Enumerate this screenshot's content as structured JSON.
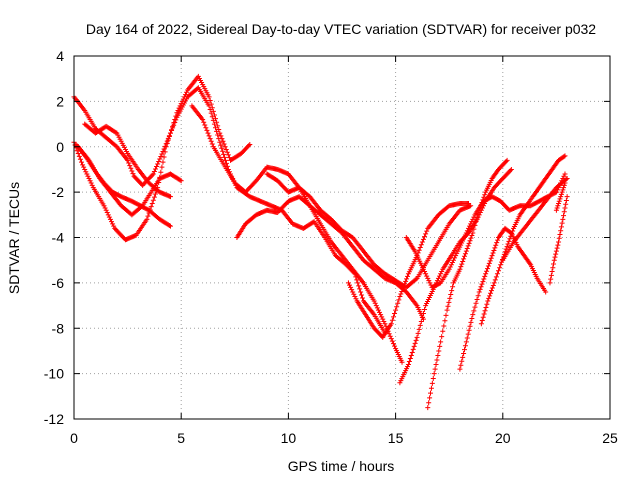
{
  "chart_data": {
    "type": "scatter",
    "title": "Day 164 of 2022, Sidereal Day-to-day VTEC variation (SDTVAR) for receiver p032",
    "xlabel": "GPS time / hours",
    "ylabel": "SDTVAR / TECUs",
    "xlim": [
      0,
      25
    ],
    "ylim": [
      -12,
      4
    ],
    "xticks": [
      "0",
      "5",
      "10",
      "15",
      "20",
      "25"
    ],
    "yticks": [
      "4",
      "2",
      "0",
      "-2",
      "-4",
      "-6",
      "-8",
      "-10",
      "-12"
    ],
    "grid": true,
    "legend": "none",
    "marker": "+",
    "color": "#ff0000",
    "series": [
      {
        "x": [
          0.0,
          0.5,
          1.0,
          1.5,
          2.0,
          2.5,
          2.8,
          3.2,
          3.7,
          4.2,
          4.8,
          5.3,
          5.8,
          6.3,
          6.8,
          7.2,
          7.6,
          8.2,
          8.7,
          9.2,
          9.7,
          10.2,
          10.7,
          11.2,
          11.7,
          12.2,
          12.7,
          13.1,
          13.5,
          14.0,
          14.5
        ],
        "y": [
          2.2,
          1.6,
          0.8,
          0.4,
          0.0,
          -0.6,
          -1.3,
          -1.7,
          -1.2,
          -0.1,
          1.3,
          2.2,
          2.6,
          1.8,
          0.2,
          -1.0,
          -1.8,
          -2.2,
          -2.4,
          -2.6,
          -2.8,
          -3.4,
          -3.6,
          -3.3,
          -4.0,
          -4.8,
          -5.2,
          -5.6,
          -6.8,
          -7.4,
          -8.2
        ]
      },
      {
        "x": [
          0.0,
          0.4,
          0.9,
          1.4,
          1.9,
          2.4,
          2.9,
          3.4,
          3.9,
          4.3,
          4.8,
          5.3,
          5.8,
          6.3,
          6.8,
          7.3,
          7.8,
          8.2
        ],
        "y": [
          0.2,
          -0.8,
          -1.8,
          -2.6,
          -3.6,
          -4.1,
          -3.9,
          -3.2,
          -1.8,
          0.0,
          1.5,
          2.5,
          3.1,
          2.2,
          0.6,
          -0.6,
          -0.3,
          0.1
        ]
      },
      {
        "x": [
          0.2,
          0.7,
          1.2,
          1.7,
          2.2,
          2.7,
          3.2,
          3.6,
          4.0,
          4.5,
          5.0
        ],
        "y": [
          0.0,
          -0.6,
          -1.4,
          -2.0,
          -2.6,
          -3.0,
          -2.6,
          -2.0,
          -1.4,
          -1.2,
          -1.5
        ]
      },
      {
        "x": [
          0.1,
          0.6,
          1.0,
          1.4,
          1.8,
          2.2,
          2.7,
          3.1,
          3.5,
          4.0,
          4.5
        ],
        "y": [
          0.1,
          -0.5,
          -1.1,
          -1.6,
          -2.0,
          -2.2,
          -2.4,
          -2.6,
          -2.8,
          -3.2,
          -3.5
        ]
      },
      {
        "x": [
          0.5,
          1.0,
          1.5,
          2.0,
          2.5,
          3.0,
          3.5,
          4.0,
          4.5
        ],
        "y": [
          1.0,
          0.6,
          0.9,
          0.6,
          -0.3,
          -1.0,
          -1.6,
          -2.0,
          -2.2
        ]
      },
      {
        "x": [
          5.5,
          6.0,
          6.5,
          7.0,
          7.5,
          8.0,
          8.5,
          9.0,
          9.5,
          10.0,
          10.5,
          11.0,
          11.5,
          12.0,
          12.5,
          13.0,
          13.5,
          14.0,
          14.5,
          15.0,
          15.3
        ],
        "y": [
          1.8,
          1.2,
          0.0,
          -0.8,
          -1.6,
          -2.0,
          -1.5,
          -0.9,
          -1.0,
          -1.2,
          -1.8,
          -2.6,
          -3.4,
          -4.2,
          -4.8,
          -5.4,
          -6.0,
          -6.8,
          -7.8,
          -8.9,
          -9.5
        ]
      },
      {
        "x": [
          7.6,
          8.0,
          8.5,
          9.0,
          9.5,
          10.0,
          10.5,
          11.0,
          11.5,
          12.0,
          12.5,
          13.0,
          13.5,
          14.0,
          14.5,
          15.0,
          15.5,
          16.0,
          16.3
        ],
        "y": [
          -4.0,
          -3.4,
          -3.0,
          -2.8,
          -2.9,
          -2.4,
          -2.2,
          -2.6,
          -3.0,
          -3.4,
          -3.8,
          -4.4,
          -5.0,
          -5.4,
          -5.8,
          -6.0,
          -6.4,
          -7.0,
          -7.6
        ]
      },
      {
        "x": [
          9.0,
          9.5,
          10.0,
          10.5,
          11.0,
          11.5,
          12.0,
          12.5,
          13.0,
          13.5,
          14.0,
          14.5,
          15.0,
          15.5,
          16.0,
          16.5,
          17.0,
          17.5,
          18.0,
          18.5
        ],
        "y": [
          -1.2,
          -1.5,
          -2.0,
          -1.8,
          -2.2,
          -2.8,
          -3.2,
          -3.7,
          -4.0,
          -4.6,
          -5.2,
          -5.6,
          -5.9,
          -6.2,
          -5.8,
          -5.0,
          -4.2,
          -3.4,
          -2.8,
          -2.6
        ]
      },
      {
        "x": [
          12.8,
          13.2,
          13.6,
          14.0,
          14.4,
          14.8,
          15.2,
          15.6,
          16.0,
          16.5,
          17.0,
          17.5,
          18.0,
          18.4
        ],
        "y": [
          -6.0,
          -6.8,
          -7.4,
          -8.0,
          -8.4,
          -7.8,
          -6.6,
          -5.6,
          -4.8,
          -3.6,
          -3.0,
          -2.6,
          -2.5,
          -2.5
        ]
      },
      {
        "x": [
          15.5,
          15.9,
          16.3,
          16.7,
          17.1,
          17.5,
          17.9,
          18.3,
          18.7,
          19.1,
          19.5,
          19.9,
          20.3,
          20.8,
          21.3,
          21.7,
          22.1,
          22.5,
          22.9
        ],
        "y": [
          -4.0,
          -4.6,
          -5.4,
          -6.2,
          -6.0,
          -5.4,
          -4.6,
          -3.8,
          -3.0,
          -2.4,
          -2.2,
          -2.4,
          -2.8,
          -2.6,
          -2.6,
          -2.4,
          -2.2,
          -2.0,
          -1.2
        ]
      },
      {
        "x": [
          15.2,
          15.6,
          16.0,
          16.4,
          16.8,
          17.2,
          17.6,
          18.0,
          18.4,
          18.8,
          19.2,
          19.6,
          20.0,
          20.4
        ],
        "y": [
          -10.4,
          -9.6,
          -8.4,
          -7.0,
          -6.2,
          -5.4,
          -4.8,
          -4.2,
          -3.8,
          -3.2,
          -2.4,
          -1.8,
          -1.4,
          -1.0
        ]
      },
      {
        "x": [
          16.5,
          16.8,
          17.1,
          17.4,
          17.7,
          18.0,
          18.3,
          18.6,
          18.9,
          19.2,
          19.5,
          19.8,
          20.2
        ],
        "y": [
          -11.5,
          -10.0,
          -8.6,
          -7.2,
          -6.0,
          -5.4,
          -4.6,
          -3.8,
          -2.8,
          -2.0,
          -1.4,
          -1.0,
          -0.6
        ]
      },
      {
        "x": [
          18.0,
          18.3,
          18.6,
          18.9,
          19.2,
          19.5,
          19.8,
          20.1,
          20.4,
          20.7,
          21.0,
          21.3,
          21.6,
          22.0
        ],
        "y": [
          -9.8,
          -8.6,
          -7.4,
          -6.4,
          -5.6,
          -4.8,
          -4.0,
          -3.6,
          -3.8,
          -4.4,
          -4.8,
          -5.2,
          -5.8,
          -6.4
        ]
      },
      {
        "x": [
          19.0,
          19.3,
          19.6,
          19.9,
          20.2,
          20.5,
          20.8,
          21.1,
          21.4,
          21.7,
          22.0,
          22.3,
          22.6,
          22.9
        ],
        "y": [
          -7.8,
          -6.8,
          -6.0,
          -5.2,
          -4.4,
          -3.6,
          -3.0,
          -2.6,
          -2.2,
          -1.8,
          -1.4,
          -1.0,
          -0.6,
          -0.4
        ]
      },
      {
        "x": [
          20.0,
          20.5,
          21.0,
          21.5,
          22.0,
          22.5,
          23.0
        ],
        "y": [
          -5.0,
          -4.2,
          -3.6,
          -3.0,
          -2.4,
          -1.8,
          -1.4
        ]
      },
      {
        "x": [
          22.2,
          22.4,
          22.6,
          22.8,
          23.0
        ],
        "y": [
          -6.0,
          -5.0,
          -4.2,
          -3.2,
          -2.2
        ]
      },
      {
        "x": [
          22.5,
          22.7,
          22.9
        ],
        "y": [
          -2.8,
          -2.2,
          -1.6
        ]
      }
    ]
  }
}
